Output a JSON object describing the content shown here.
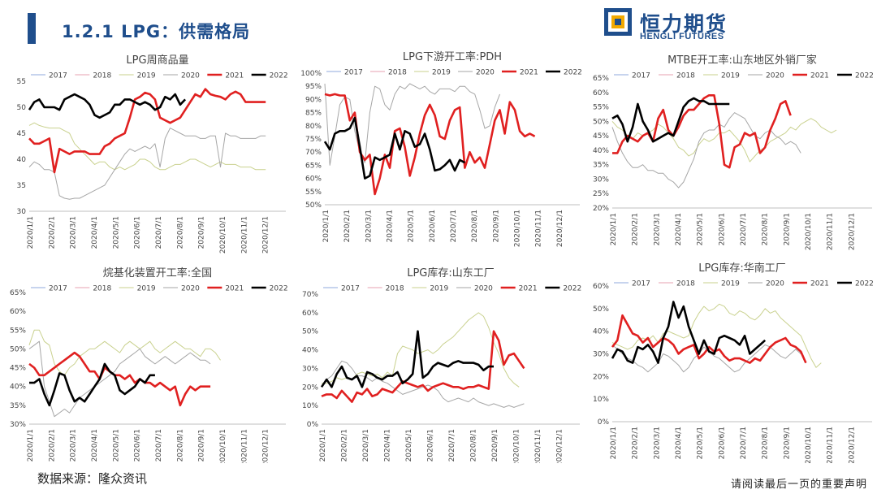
{
  "header": {
    "title": "1.2.1 LPG：供需格局"
  },
  "logo": {
    "name_cn": "恒力期货",
    "name_en": "HENGLI FUTURES",
    "color": "#1f4e8c",
    "accent": "#f2a900"
  },
  "footer": {
    "source": "数据来源：隆众资讯",
    "disclaimer": "请阅读最后一页的重要声明"
  },
  "x_ticks": [
    "2020/1/1",
    "2020/2/1",
    "2020/3/1",
    "2020/4/1",
    "2020/5/1",
    "2020/6/1",
    "2020/7/1",
    "2020/8/1",
    "2020/9/1",
    "2020/10/1",
    "2020/11/1",
    "2020/12/1"
  ],
  "series_colors": {
    "2017": "#8faadc",
    "2018": "#e7a0b0",
    "2019": "#c9d18e",
    "2020": "#a6a6a6",
    "2021": "#e02020",
    "2022": "#000000"
  },
  "chart_data": [
    {
      "type": "line",
      "title": "LPG周商品量",
      "ylim": [
        30,
        55
      ],
      "yticks": [
        "30",
        "35",
        "40",
        "45",
        "50",
        "55"
      ],
      "percent": false,
      "legend": "top",
      "series": [
        {
          "name": "2017",
          "values": []
        },
        {
          "name": "2018",
          "values": []
        },
        {
          "name": "2019",
          "values": [
            46.5,
            47,
            46.5,
            46.2,
            46,
            46,
            46,
            45.5,
            45,
            43,
            42,
            41,
            40,
            39,
            39.5,
            39.5,
            38.5,
            38,
            38.5,
            38,
            38.5,
            39,
            40,
            40,
            39.5,
            38.5,
            38,
            38,
            38.5,
            39,
            39,
            39.5,
            40,
            40,
            39.5,
            39,
            38.5,
            39,
            39.5,
            39,
            39,
            39,
            38.5,
            38.5,
            38.5,
            38,
            38,
            38
          ]
        },
        {
          "name": "2020",
          "values": [
            38.5,
            39.5,
            39,
            38,
            38,
            37.5,
            33,
            32.5,
            32.3,
            32.5,
            32.5,
            33,
            33.5,
            34,
            34.5,
            35,
            36.5,
            38,
            39.5,
            41,
            42,
            41.5,
            42,
            42.5,
            42,
            43,
            38.5,
            44,
            46,
            45.5,
            45,
            44.5,
            44.5,
            44.5,
            44,
            44,
            44.5,
            44.5,
            38.5,
            45,
            44.5,
            44.5,
            44,
            44,
            44,
            44,
            44.5,
            44.5
          ]
        },
        {
          "name": "2021",
          "values": [
            44,
            43,
            43,
            43.5,
            44,
            37.5,
            42,
            41.5,
            41,
            41.5,
            41.5,
            41.5,
            41,
            41,
            41,
            42.5,
            43,
            44,
            44.5,
            45,
            48,
            51.5,
            52,
            52.8,
            52.5,
            51.5,
            48,
            47.5,
            47,
            47.5,
            48,
            49.5,
            51,
            52.5,
            52,
            53.5,
            52.5,
            52.2,
            52,
            51.5,
            52.5,
            53,
            52.5,
            51,
            51,
            51,
            51,
            51
          ]
        },
        {
          "name": "2022",
          "values": [
            49.5,
            51,
            51.5,
            50,
            50,
            50,
            49.5,
            51.5,
            52,
            52.5,
            52,
            51.5,
            50.5,
            48.5,
            48,
            48.5,
            49,
            50.5,
            50.5,
            51.5,
            51.5,
            51,
            50.5,
            51,
            50.5,
            49.5,
            50,
            52,
            51.5,
            52.5,
            50.5,
            51.5
          ]
        }
      ]
    },
    {
      "type": "line",
      "title": "LPG下游开工率:PDH",
      "ylim": [
        50,
        100
      ],
      "yticks": [
        "50%",
        "55%",
        "60%",
        "65%",
        "70%",
        "75%",
        "80%",
        "85%",
        "90%",
        "95%",
        "100%"
      ],
      "percent": true,
      "legend": "top",
      "series": [
        {
          "name": "2017",
          "values": []
        },
        {
          "name": "2018",
          "values": []
        },
        {
          "name": "2019",
          "values": []
        },
        {
          "name": "2020",
          "values": [
            96,
            65,
            76,
            88,
            91,
            90,
            78,
            70,
            66,
            85,
            95,
            94,
            88,
            86,
            92,
            95,
            94,
            96,
            95,
            94,
            95,
            93,
            92,
            94,
            94,
            94,
            93,
            95,
            95,
            93,
            92,
            86,
            79,
            80,
            87,
            92
          ]
        },
        {
          "name": "2021",
          "values": [
            92,
            91.5,
            92,
            91.5,
            91.5,
            82,
            85,
            70,
            67,
            69,
            54,
            60,
            69,
            64,
            78,
            79,
            72,
            61,
            68,
            77,
            84,
            88,
            84,
            76,
            75,
            82,
            86,
            87,
            64,
            70,
            66,
            68,
            64,
            73,
            82,
            86,
            77,
            89,
            86,
            78,
            76,
            77,
            76
          ]
        },
        {
          "name": "2022",
          "values": [
            74,
            71,
            77,
            78,
            78,
            79,
            83,
            72,
            60,
            61,
            68,
            67,
            68,
            69,
            77,
            71,
            78,
            77,
            72,
            73,
            77,
            71,
            63,
            63.5,
            65,
            67,
            63,
            67,
            66
          ]
        }
      ]
    },
    {
      "type": "line",
      "title": "MTBE开工率:山东地区外销厂家",
      "ylim": [
        20,
        65
      ],
      "yticks": [
        "20%",
        "25%",
        "30%",
        "35%",
        "40%",
        "45%",
        "50%",
        "55%",
        "60%",
        "65%"
      ],
      "percent": true,
      "legend": "top",
      "series": [
        {
          "name": "2017",
          "values": []
        },
        {
          "name": "2018",
          "values": []
        },
        {
          "name": "2019",
          "values": [
            50,
            48,
            47,
            45,
            44,
            46,
            45,
            46,
            47,
            49,
            48,
            46,
            44,
            41,
            40,
            38,
            39,
            42,
            44,
            43,
            44,
            46,
            46,
            47,
            45,
            43,
            40,
            36,
            38,
            40,
            41,
            43,
            44,
            45,
            46,
            48,
            47,
            49,
            50,
            51,
            50,
            48,
            47,
            46,
            47
          ]
        },
        {
          "name": "2020",
          "values": [
            48,
            43,
            39,
            36,
            34,
            34,
            35,
            33,
            33,
            32,
            32,
            30,
            29,
            27,
            29,
            33,
            37,
            43,
            46,
            47,
            47,
            49,
            48,
            51,
            53,
            52,
            51,
            48,
            45,
            44,
            46,
            47,
            45,
            44,
            42,
            43,
            42,
            39
          ]
        },
        {
          "name": "2021",
          "values": [
            39,
            39,
            43,
            45,
            44,
            43,
            45,
            46,
            43,
            51,
            54,
            47,
            45,
            48,
            52,
            54,
            54,
            56,
            58,
            59,
            59,
            49,
            35,
            34,
            41,
            42,
            46,
            45,
            46,
            39,
            41,
            47,
            51,
            56,
            57,
            52
          ]
        },
        {
          "name": "2022",
          "values": [
            51,
            52,
            49,
            43,
            48,
            56,
            50,
            47,
            43,
            44,
            45,
            46,
            45,
            50,
            55,
            57,
            58,
            57,
            57,
            56,
            56,
            56,
            56,
            56
          ]
        }
      ]
    },
    {
      "type": "line",
      "title": "烷基化装置开工率:全国",
      "ylim": [
        30,
        65
      ],
      "yticks": [
        "30%",
        "35%",
        "40%",
        "45%",
        "50%",
        "55%",
        "60%",
        "65%"
      ],
      "percent": true,
      "legend": "top",
      "series": [
        {
          "name": "2017",
          "values": []
        },
        {
          "name": "2018",
          "values": []
        },
        {
          "name": "2019",
          "values": [
            51,
            55,
            55,
            52,
            51,
            46,
            44,
            43,
            45,
            46,
            48,
            49,
            50,
            50,
            51,
            52,
            51,
            50,
            49,
            51,
            52,
            51,
            50,
            51,
            52,
            50,
            49,
            50,
            51,
            52,
            51,
            50,
            50,
            49,
            48,
            50,
            50,
            49,
            47
          ]
        },
        {
          "name": "2020",
          "values": [
            50,
            51,
            52,
            40,
            36,
            32,
            33,
            34,
            33,
            35,
            37,
            38,
            39,
            40,
            41,
            42,
            43,
            44,
            46,
            47,
            48,
            49,
            50,
            48,
            47,
            46,
            47,
            48,
            47,
            46,
            47,
            48,
            49,
            48,
            47,
            47,
            46
          ]
        },
        {
          "name": "2021",
          "values": [
            46,
            45,
            43,
            43,
            44,
            45,
            46,
            47,
            48,
            49,
            48,
            46,
            44,
            44,
            42,
            45,
            44,
            43,
            43,
            42,
            43,
            41,
            42,
            41,
            41,
            40,
            41,
            40,
            39,
            40,
            35,
            38,
            40,
            39,
            40,
            40,
            40
          ]
        },
        {
          "name": "2022",
          "values": [
            41,
            41,
            42,
            38,
            35,
            39,
            43.5,
            43,
            39,
            36,
            37,
            36,
            38,
            40,
            42,
            46,
            44,
            43,
            39,
            38,
            39,
            40,
            42,
            41,
            43,
            43
          ]
        }
      ]
    },
    {
      "type": "line",
      "title": "LPG库存:山东工厂",
      "ylim": [
        0,
        70
      ],
      "yticks": [
        "0%",
        "10%",
        "20%",
        "30%",
        "40%",
        "50%",
        "60%",
        "70%"
      ],
      "percent": true,
      "legend": "top",
      "series": [
        {
          "name": "2017",
          "values": []
        },
        {
          "name": "2018",
          "values": []
        },
        {
          "name": "2019",
          "values": [
            22,
            22,
            23,
            25,
            24,
            25,
            24,
            27,
            28,
            27,
            26,
            27,
            25,
            28,
            26,
            38,
            42,
            41,
            40,
            38,
            39,
            40,
            38,
            40,
            43,
            45,
            47,
            50,
            53,
            56,
            58,
            60,
            58,
            52,
            44,
            38,
            30,
            25,
            22,
            20
          ]
        },
        {
          "name": "2020",
          "values": [
            20,
            24,
            26,
            30,
            34,
            33,
            30,
            26,
            26,
            25,
            23,
            25,
            23,
            22,
            20,
            18,
            16,
            17,
            18,
            19,
            20,
            21,
            20,
            18,
            14,
            12,
            13,
            14,
            13,
            12,
            14,
            12,
            11,
            10,
            11,
            10,
            9,
            10,
            9,
            10,
            11
          ]
        },
        {
          "name": "2021",
          "values": [
            15,
            16,
            16,
            14,
            18,
            15,
            12,
            17,
            16,
            19,
            15,
            16,
            19,
            18,
            17,
            20,
            23,
            22,
            21,
            20,
            21,
            18,
            20,
            21,
            22,
            21,
            20,
            20,
            19,
            20,
            20,
            21,
            20,
            19,
            50,
            45,
            32,
            37,
            38,
            34,
            30
          ]
        },
        {
          "name": "2022",
          "values": [
            20,
            24,
            20,
            27,
            31,
            25,
            24,
            26,
            20,
            28,
            27,
            25,
            24,
            26,
            26,
            28,
            22,
            24,
            27,
            50,
            25,
            27,
            31,
            33,
            32,
            31,
            33,
            34,
            33,
            33,
            33,
            32,
            29,
            31,
            31
          ]
        }
      ]
    },
    {
      "type": "line",
      "title": "LPG库存:华南工厂",
      "ylim": [
        0,
        60
      ],
      "yticks": [
        "0%",
        "10%",
        "20%",
        "30%",
        "40%",
        "50%",
        "60%"
      ],
      "percent": true,
      "legend": "top",
      "series": [
        {
          "name": "2017",
          "values": []
        },
        {
          "name": "2018",
          "values": []
        },
        {
          "name": "2019",
          "values": [
            35,
            34,
            33,
            32,
            33,
            36,
            37,
            36,
            38,
            35,
            39,
            40,
            39,
            38,
            37,
            38,
            44,
            48,
            51,
            49,
            50,
            52,
            51,
            48,
            47,
            49,
            48,
            46,
            45,
            47,
            50,
            48,
            49,
            46,
            44,
            42,
            40,
            38,
            33,
            28,
            24,
            26
          ]
        },
        {
          "name": "2020",
          "values": [
            34,
            32,
            30,
            28,
            27,
            25,
            24,
            22,
            24,
            26,
            30,
            29,
            27,
            25,
            22,
            24,
            28,
            30,
            33,
            31,
            29,
            28,
            26,
            24,
            22,
            23,
            26,
            28,
            30,
            32,
            34,
            33,
            31,
            29,
            28,
            30,
            32,
            30
          ]
        },
        {
          "name": "2021",
          "values": [
            33,
            36,
            47,
            43,
            39,
            38,
            35,
            37,
            33,
            35,
            37,
            36,
            34,
            30,
            32,
            33,
            34,
            28,
            30,
            33,
            31,
            32,
            29,
            27,
            28,
            28,
            27,
            26,
            28,
            27,
            30,
            33,
            35,
            36,
            37,
            34,
            33,
            31,
            26
          ]
        },
        {
          "name": "2022",
          "values": [
            28,
            32,
            31,
            27,
            26,
            33,
            32,
            34,
            31,
            26,
            37,
            42,
            53,
            46,
            51,
            42,
            36,
            30,
            36,
            31,
            30,
            37,
            38,
            37,
            36,
            34,
            38,
            30,
            32,
            34,
            36
          ]
        }
      ]
    }
  ]
}
